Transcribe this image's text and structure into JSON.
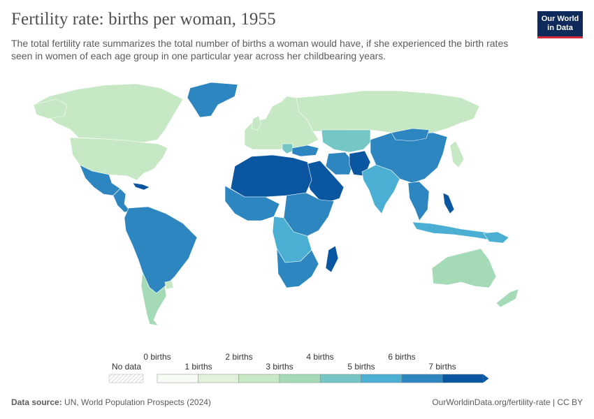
{
  "header": {
    "title": "Fertility rate: births per woman, 1955",
    "subtitle": "The total fertility rate summarizes the total number of births a woman would have, if she experienced the birth rates seen in women of each age group in one particular year across her childbearing years."
  },
  "logo": {
    "line1": "Our World",
    "line2": "in Data"
  },
  "legend": {
    "no_data": "No data",
    "top_labels": [
      "0 births",
      "2 births",
      "4 births",
      "6 births"
    ],
    "bottom_labels": [
      "1 births",
      "3 births",
      "5 births",
      "7 births"
    ],
    "colors": [
      "#f7fcf5",
      "#e1f1dc",
      "#c7e8c4",
      "#a4dab6",
      "#74c7c4",
      "#4aafd2",
      "#2d86c0",
      "#0b56a0"
    ]
  },
  "footer": {
    "source_label": "Data source:",
    "source_text": "UN, World Population Prospects (2024)",
    "url": "OurWorldinData.org/fertility-rate",
    "license": "CC BY"
  },
  "colors": {
    "ocean": "#ffffff",
    "border": "#ffffff",
    "logo_bg": "#0d2a5a",
    "logo_accent": "#d42b3a"
  }
}
